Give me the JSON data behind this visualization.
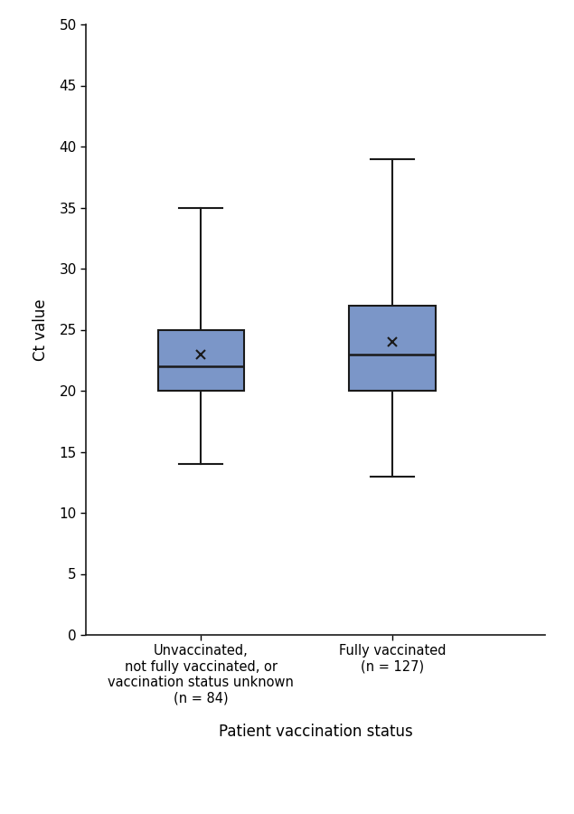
{
  "groups": [
    {
      "label": "Unvaccinated,\nnot fully vaccinated, or\nvaccination status unknown\n(n = 84)",
      "whisker_low": 14,
      "q1": 20,
      "median": 22,
      "q3": 25,
      "whisker_high": 35,
      "mean": 23
    },
    {
      "label": "Fully vaccinated\n(n = 127)",
      "whisker_low": 13,
      "q1": 20,
      "median": 23,
      "q3": 27,
      "whisker_high": 39,
      "mean": 24
    }
  ],
  "ylim": [
    0,
    50
  ],
  "yticks": [
    0,
    5,
    10,
    15,
    20,
    25,
    30,
    35,
    40,
    45,
    50
  ],
  "ylabel": "Ct value",
  "xlabel": "Patient vaccination status",
  "box_color": "#7b96c8",
  "box_edge_color": "#1a1a1a",
  "whisker_color": "#1a1a1a",
  "median_color": "#1a1a1a",
  "mean_marker": "x",
  "mean_color": "#1a1a1a",
  "box_width": 0.45,
  "positions": [
    1,
    2
  ],
  "background_color": "#ffffff",
  "plot_bg_color": "#ffffff",
  "ylabel_fontsize": 12,
  "xlabel_fontsize": 12,
  "tick_fontsize": 11,
  "label_fontsize": 10.5
}
